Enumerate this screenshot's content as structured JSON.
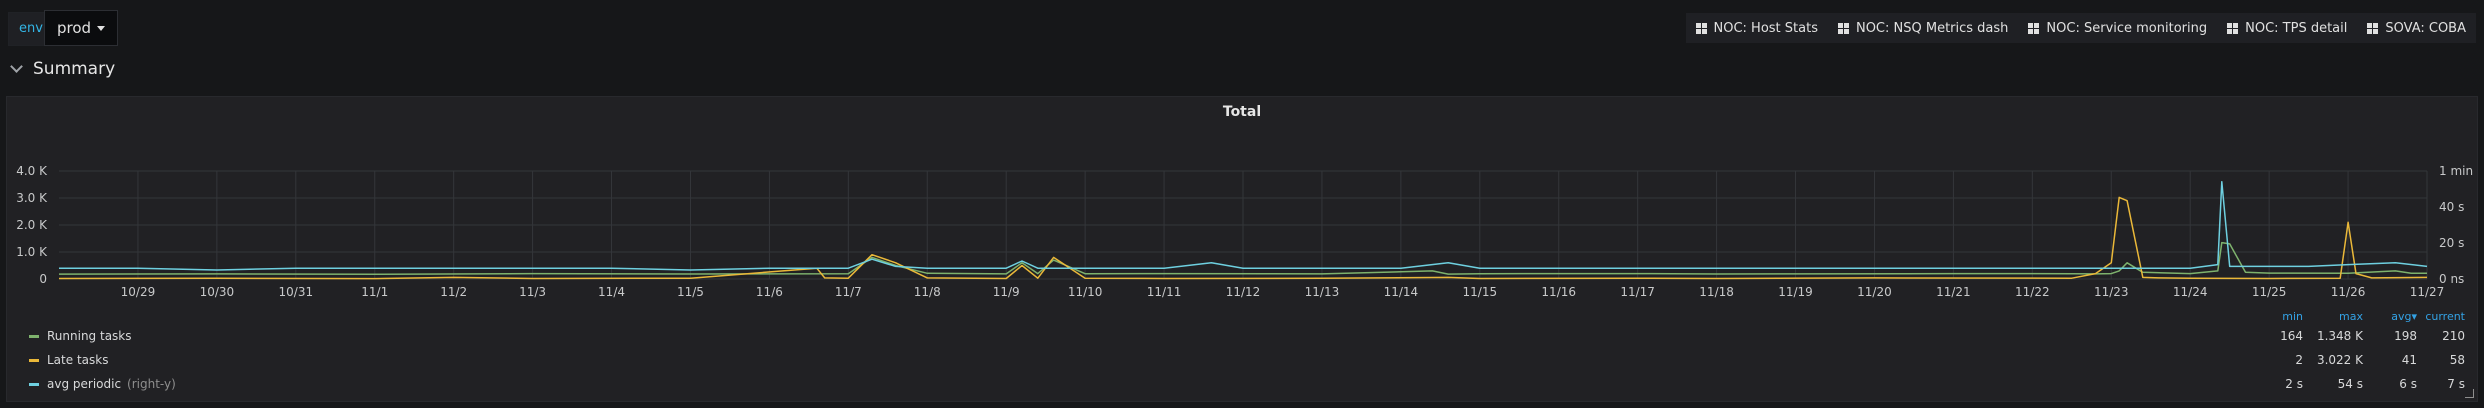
{
  "variables": {
    "label": "env",
    "selected": "prod"
  },
  "dashboard_links": [
    {
      "label": "NOC: Host Stats"
    },
    {
      "label": "NOC: NSQ Metrics dash"
    },
    {
      "label": "NOC: Service monitoring"
    },
    {
      "label": "NOC: TPS detail"
    },
    {
      "label": "SOVA: COBA"
    }
  ],
  "row": {
    "title": "Summary"
  },
  "chart_data": {
    "type": "line",
    "title": "Total",
    "xlabel": "",
    "ylabel": "",
    "grid": true,
    "legend_placement": "bottom-table",
    "x_ticks": [
      "10/29",
      "10/30",
      "10/31",
      "11/1",
      "11/2",
      "11/3",
      "11/4",
      "11/5",
      "11/6",
      "11/7",
      "11/8",
      "11/9",
      "11/10",
      "11/11",
      "11/12",
      "11/13",
      "11/14",
      "11/15",
      "11/16",
      "11/17",
      "11/18",
      "11/19",
      "11/20",
      "11/21",
      "11/22",
      "11/23",
      "11/24",
      "11/25",
      "11/26",
      "11/27"
    ],
    "x_range": [
      "10/28",
      "11/27"
    ],
    "y_left": {
      "ticks": [
        "0",
        "1.0 K",
        "2.0 K",
        "3.0 K",
        "4.0 K"
      ],
      "range": [
        0,
        4000
      ]
    },
    "y_right": {
      "ticks": [
        "0 ns",
        "20 s",
        "40 s",
        "1 min"
      ],
      "range_seconds": [
        0,
        60
      ]
    },
    "legend_columns": [
      "min",
      "max",
      "avg",
      "current"
    ],
    "sort_indicator": "▾",
    "series": [
      {
        "name": "Running tasks",
        "color": "#7eb26d",
        "axis": "left",
        "min": "164",
        "max": "1.348 K",
        "avg": "198",
        "current": "210",
        "x": [
          0,
          2,
          4,
          6,
          8,
          10,
          10.3,
          10.6,
          11,
          12,
          12.2,
          12.4,
          12.6,
          13,
          14,
          16,
          17.4,
          17.6,
          18,
          20,
          21,
          22,
          24,
          25.5,
          25.8,
          26,
          26.1,
          26.2,
          26.4,
          27,
          27.35,
          27.4,
          27.5,
          27.7,
          28,
          29,
          29.6,
          29.8,
          30
        ],
        "y": [
          180,
          190,
          175,
          200,
          185,
          195,
          800,
          500,
          210,
          190,
          600,
          200,
          700,
          195,
          200,
          190,
          300,
          180,
          195,
          200,
          185,
          190,
          200,
          195,
          190,
          200,
          300,
          600,
          250,
          200,
          300,
          1348,
          1300,
          250,
          220,
          210,
          300,
          210,
          210
        ]
      },
      {
        "name": "Late tasks",
        "color": "#eab839",
        "axis": "left",
        "min": "2",
        "max": "3.022 K",
        "avg": "41",
        "current": "58",
        "x": [
          0,
          2,
          4,
          5,
          6,
          8,
          9.6,
          9.7,
          10,
          10.3,
          10.6,
          11,
          12,
          12.2,
          12.4,
          12.6,
          13,
          14,
          16,
          17.6,
          18,
          20,
          21,
          23,
          25.5,
          25.8,
          26,
          26.1,
          26.2,
          26.4,
          26.6,
          27,
          28,
          28.9,
          29,
          29.1,
          29.3,
          30
        ],
        "y": [
          20,
          25,
          15,
          60,
          20,
          30,
          400,
          40,
          30,
          900,
          600,
          40,
          20,
          500,
          30,
          800,
          30,
          20,
          25,
          60,
          20,
          30,
          20,
          40,
          30,
          200,
          600,
          3022,
          2900,
          60,
          40,
          30,
          20,
          30,
          2100,
          200,
          40,
          58
        ]
      },
      {
        "name": "avg periodic",
        "color": "#6ed0e0",
        "axis": "right",
        "note": "(right-y)",
        "min": "2 s",
        "max": "54 s",
        "avg": "6 s",
        "current": "7 s",
        "x": [
          0,
          1,
          2,
          3,
          4,
          5,
          6,
          7,
          8,
          9,
          10,
          10.3,
          10.6,
          11,
          12,
          12.2,
          12.4,
          13,
          14,
          14.6,
          15,
          16,
          17,
          17.6,
          18,
          19,
          20,
          21,
          22,
          23,
          24,
          25,
          26,
          26.5,
          27,
          27.35,
          27.4,
          27.5,
          28,
          28.5,
          29,
          29.6,
          30
        ],
        "y": [
          6,
          6,
          5,
          6,
          6,
          6,
          6,
          6,
          5,
          6,
          6,
          11,
          7,
          6,
          6,
          10,
          6,
          6,
          6,
          9,
          6,
          6,
          6,
          9,
          6,
          6,
          6,
          6,
          6,
          6,
          6,
          6,
          6,
          6,
          6,
          8,
          54,
          7,
          7,
          7,
          8,
          9,
          7
        ]
      }
    ]
  }
}
